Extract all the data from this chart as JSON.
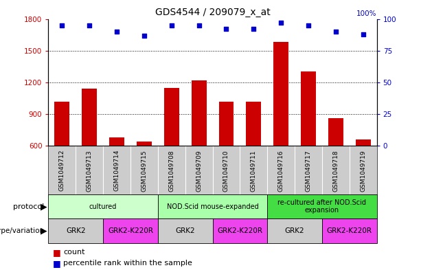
{
  "title": "GDS4544 / 209079_x_at",
  "samples": [
    "GSM1049712",
    "GSM1049713",
    "GSM1049714",
    "GSM1049715",
    "GSM1049708",
    "GSM1049709",
    "GSM1049710",
    "GSM1049711",
    "GSM1049716",
    "GSM1049717",
    "GSM1049718",
    "GSM1049719"
  ],
  "counts": [
    1020,
    1140,
    680,
    640,
    1150,
    1220,
    1020,
    1020,
    1580,
    1300,
    860,
    660
  ],
  "percentile_ranks": [
    95,
    95,
    90,
    87,
    95,
    95,
    92,
    92,
    97,
    95,
    90,
    88
  ],
  "ylim_left": [
    600,
    1800
  ],
  "ylim_right": [
    0,
    100
  ],
  "yticks_left": [
    600,
    900,
    1200,
    1500,
    1800
  ],
  "yticks_right": [
    0,
    25,
    50,
    75,
    100
  ],
  "bar_color": "#cc0000",
  "dot_color": "#0000cc",
  "bar_bottom": 600,
  "protocol_groups": [
    {
      "label": "cultured",
      "start": 0,
      "end": 4,
      "color": "#ccffcc"
    },
    {
      "label": "NOD.Scid mouse-expanded",
      "start": 4,
      "end": 8,
      "color": "#aaffaa"
    },
    {
      "label": "re-cultured after NOD.Scid\nexpansion",
      "start": 8,
      "end": 12,
      "color": "#44dd44"
    }
  ],
  "genotype_groups": [
    {
      "label": "GRK2",
      "start": 0,
      "end": 2,
      "color": "#dddddd"
    },
    {
      "label": "GRK2-K220R",
      "start": 2,
      "end": 4,
      "color": "#ee44ee"
    },
    {
      "label": "GRK2",
      "start": 4,
      "end": 6,
      "color": "#dddddd"
    },
    {
      "label": "GRK2-K220R",
      "start": 6,
      "end": 8,
      "color": "#ee44ee"
    },
    {
      "label": "GRK2",
      "start": 8,
      "end": 10,
      "color": "#dddddd"
    },
    {
      "label": "GRK2-K220R",
      "start": 10,
      "end": 12,
      "color": "#ee44ee"
    }
  ],
  "legend_count_color": "#cc0000",
  "legend_dot_color": "#0000cc",
  "sample_label_bg": "#cccccc",
  "background_color": "#ffffff",
  "dot_percentile_yval": 97
}
